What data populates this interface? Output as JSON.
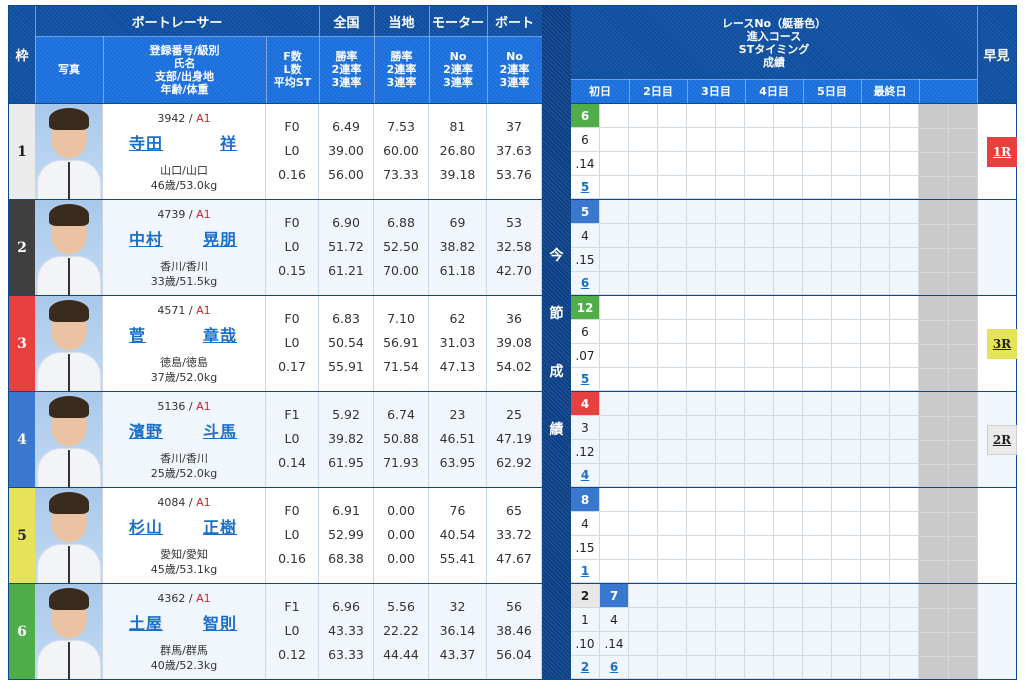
{
  "header": {
    "waku": "枠",
    "racer_group": "ボートレーサー",
    "photo": "写真",
    "racer_info": "登録番号/級別\n氏名\n支部/出身地\n年齢/体重",
    "fl": "F数\nL数\n平均ST",
    "national": "全国",
    "national_sub": "勝率\n2連率\n3連率",
    "local": "当地",
    "local_sub": "勝率\n2連率\n3連率",
    "motor": "モーター",
    "motor_sub": "No\n2連率\n3連率",
    "boat": "ボート",
    "boat_sub": "No\n2連率\n3連率",
    "series_label": "今\n節\n成\n績",
    "race_info": "レースNo（艇番色）\n進入コース\nSTタイミング\n成績",
    "days": [
      "初日",
      "2日目",
      "3日目",
      "4日目",
      "5日目",
      "最終日",
      ""
    ],
    "hayami": "早見"
  },
  "colors": {
    "waku": [
      "#ebebeb",
      "#404040",
      "#e8403e",
      "#3a78d0",
      "#e6e35a",
      "#4fad4a"
    ],
    "waku_text": [
      "#222222",
      "#ffffff",
      "#ffffff",
      "#ffffff",
      "#222222",
      "#ffffff"
    ],
    "race_boat_colors": {
      "1": "#e8e8e8",
      "2": "#404040",
      "3": "#e8403e",
      "4": "#e8403e",
      "5": "#3a78d0",
      "6": "#4fad4a",
      "7": "#3a78d0",
      "8": "#3a78d0",
      "12": "#4fad4a"
    },
    "header_dark": "#0f4fa0",
    "header_mid": "#1a6fdc",
    "link": "#1a6fc8"
  },
  "racers": [
    {
      "waku": "1",
      "reg": "3942",
      "class": "A1",
      "last": "寺田",
      "first": "祥",
      "branch": "山口/山口",
      "age_weight": "46歳/53.0kg",
      "f": "F0",
      "l": "L0",
      "avg_st": "0.16",
      "national": [
        "6.49",
        "39.00",
        "56.00"
      ],
      "local": [
        "7.53",
        "60.00",
        "73.33"
      ],
      "motor": [
        "81",
        "26.80",
        "39.18"
      ],
      "boat": [
        "37",
        "37.63",
        "53.76"
      ],
      "races": [
        {
          "race": "6",
          "race_color": "#4fad4a",
          "course": "6",
          "st": ".14",
          "result": "5"
        }
      ],
      "hayami": {
        "label": "1R",
        "bg": "#e8403e",
        "color": "#ffffff"
      }
    },
    {
      "waku": "2",
      "reg": "4739",
      "class": "A1",
      "last": "中村",
      "first": "晃朋",
      "branch": "香川/香川",
      "age_weight": "33歳/51.5kg",
      "f": "F0",
      "l": "L0",
      "avg_st": "0.15",
      "national": [
        "6.90",
        "51.72",
        "61.21"
      ],
      "local": [
        "6.88",
        "52.50",
        "70.00"
      ],
      "motor": [
        "69",
        "38.82",
        "61.18"
      ],
      "boat": [
        "53",
        "32.58",
        "42.70"
      ],
      "races": [
        {
          "race": "5",
          "race_color": "#3a78d0",
          "course": "4",
          "st": ".15",
          "result": "6"
        }
      ],
      "hayami": null
    },
    {
      "waku": "3",
      "reg": "4571",
      "class": "A1",
      "last": "菅",
      "first": "章哉",
      "branch": "徳島/徳島",
      "age_weight": "37歳/52.0kg",
      "f": "F0",
      "l": "L0",
      "avg_st": "0.17",
      "national": [
        "6.83",
        "50.54",
        "55.91"
      ],
      "local": [
        "7.10",
        "56.91",
        "71.54"
      ],
      "motor": [
        "62",
        "31.03",
        "47.13"
      ],
      "boat": [
        "36",
        "39.08",
        "54.02"
      ],
      "races": [
        {
          "race": "12",
          "race_color": "#4fad4a",
          "course": "6",
          "st": ".07",
          "result": "5"
        }
      ],
      "hayami": {
        "label": "3R",
        "bg": "#e6e35a",
        "color": "#222222"
      }
    },
    {
      "waku": "4",
      "reg": "5136",
      "class": "A1",
      "last": "濱野",
      "first": "斗馬",
      "branch": "香川/香川",
      "age_weight": "25歳/52.0kg",
      "f": "F1",
      "l": "L0",
      "avg_st": "0.14",
      "national": [
        "5.92",
        "39.82",
        "61.95"
      ],
      "local": [
        "6.74",
        "50.88",
        "71.93"
      ],
      "motor": [
        "23",
        "46.51",
        "63.95"
      ],
      "boat": [
        "25",
        "47.19",
        "62.92"
      ],
      "races": [
        {
          "race": "4",
          "race_color": "#e8403e",
          "course": "3",
          "st": ".12",
          "result": "4"
        }
      ],
      "hayami": {
        "label": "2R",
        "bg": "#ebebeb",
        "color": "#222222"
      }
    },
    {
      "waku": "5",
      "reg": "4084",
      "class": "A1",
      "last": "杉山",
      "first": "正樹",
      "branch": "愛知/愛知",
      "age_weight": "45歳/53.1kg",
      "f": "F0",
      "l": "L0",
      "avg_st": "0.16",
      "national": [
        "6.91",
        "52.99",
        "68.38"
      ],
      "local": [
        "0.00",
        "0.00",
        "0.00"
      ],
      "motor": [
        "76",
        "40.54",
        "55.41"
      ],
      "boat": [
        "65",
        "33.72",
        "47.67"
      ],
      "races": [
        {
          "race": "8",
          "race_color": "#3a78d0",
          "course": "4",
          "st": ".15",
          "result": "1"
        }
      ],
      "hayami": null
    },
    {
      "waku": "6",
      "reg": "4362",
      "class": "A1",
      "last": "土屋",
      "first": "智則",
      "branch": "群馬/群馬",
      "age_weight": "40歳/52.3kg",
      "f": "F1",
      "l": "L0",
      "avg_st": "0.12",
      "national": [
        "6.96",
        "43.33",
        "63.33"
      ],
      "local": [
        "5.56",
        "22.22",
        "44.44"
      ],
      "motor": [
        "32",
        "36.14",
        "43.37"
      ],
      "boat": [
        "56",
        "38.46",
        "56.04"
      ],
      "races": [
        {
          "race": "2",
          "race_color": "#e8e8e8",
          "course": "1",
          "st": ".10",
          "result": "2"
        },
        {
          "race": "7",
          "race_color": "#3a78d0",
          "course": "4",
          "st": ".14",
          "result": "6"
        }
      ],
      "hayami": null
    }
  ]
}
